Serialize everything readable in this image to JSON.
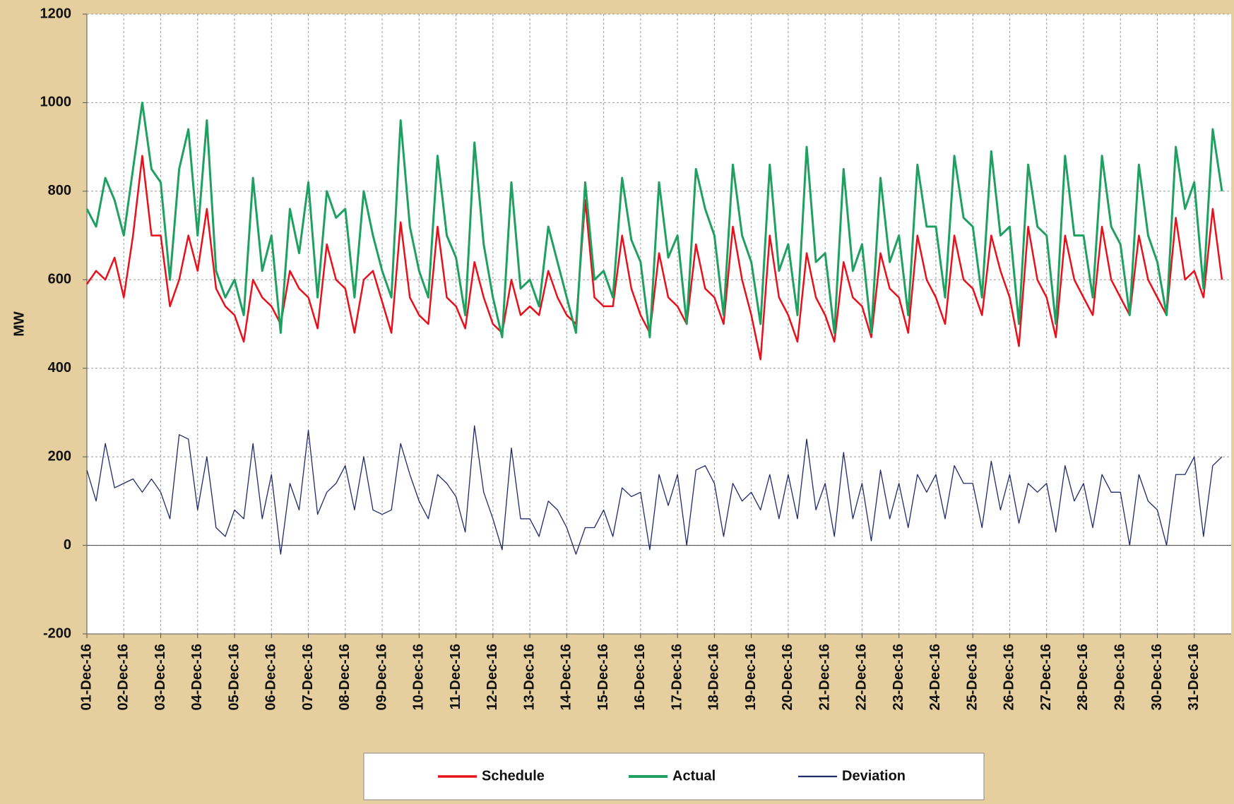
{
  "chart_data": {
    "type": "line",
    "y_label": "MW",
    "x": [
      0,
      0.25,
      0.5,
      0.75,
      1,
      1.25,
      1.5,
      1.75,
      2,
      2.25,
      2.5,
      2.75,
      3,
      3.25,
      3.5,
      3.75,
      4,
      4.25,
      4.5,
      4.75,
      5,
      5.25,
      5.5,
      5.75,
      6,
      6.25,
      6.5,
      6.75,
      7,
      7.25,
      7.5,
      7.75,
      8,
      8.25,
      8.5,
      8.75,
      9,
      9.25,
      9.5,
      9.75,
      10,
      10.25,
      10.5,
      10.75,
      11,
      11.25,
      11.5,
      11.75,
      12,
      12.25,
      12.5,
      12.75,
      13,
      13.25,
      13.5,
      13.75,
      14,
      14.25,
      14.5,
      14.75,
      15,
      15.25,
      15.5,
      15.75,
      16,
      16.25,
      16.5,
      16.75,
      17,
      17.25,
      17.5,
      17.75,
      18,
      18.25,
      18.5,
      18.75,
      19,
      19.25,
      19.5,
      19.75,
      20,
      20.25,
      20.5,
      20.75,
      21,
      21.25,
      21.5,
      21.75,
      22,
      22.25,
      22.5,
      22.75,
      23,
      23.25,
      23.5,
      23.75,
      24,
      24.25,
      24.5,
      24.75,
      25,
      25.25,
      25.5,
      25.75,
      26,
      26.25,
      26.5,
      26.75,
      27,
      27.25,
      27.5,
      27.75,
      28,
      28.25,
      28.5,
      28.75,
      29,
      29.25,
      29.5,
      29.75,
      30,
      30.25,
      30.5,
      30.75
    ],
    "series": [
      {
        "name": "Schedule",
        "color": "#e8101a",
        "values": [
          590,
          620,
          600,
          650,
          560,
          700,
          880,
          700,
          700,
          540,
          600,
          700,
          620,
          760,
          580,
          540,
          520,
          460,
          600,
          560,
          540,
          500,
          620,
          580,
          560,
          490,
          680,
          600,
          580,
          480,
          600,
          620,
          550,
          480,
          730,
          560,
          520,
          500,
          720,
          560,
          540,
          490,
          640,
          560,
          500,
          480,
          600,
          520,
          540,
          520,
          620,
          560,
          520,
          500,
          780,
          560,
          540,
          540,
          700,
          580,
          520,
          480,
          660,
          560,
          540,
          500,
          680,
          580,
          560,
          500,
          720,
          600,
          520,
          420,
          700,
          560,
          520,
          460,
          660,
          560,
          520,
          460,
          640,
          560,
          540,
          470,
          660,
          580,
          560,
          480,
          700,
          600,
          560,
          500,
          700,
          600,
          580,
          520,
          700,
          620,
          560,
          450,
          720,
          600,
          560,
          470,
          700,
          600,
          560,
          520,
          720,
          600,
          560,
          520,
          700,
          600,
          560,
          520,
          740,
          600,
          620,
          560,
          760,
          600
        ]
      },
      {
        "name": "Actual",
        "color": "#1ea060",
        "values": [
          760,
          720,
          830,
          780,
          700,
          850,
          1000,
          850,
          820,
          600,
          850,
          940,
          700,
          960,
          620,
          560,
          600,
          520,
          830,
          620,
          700,
          480,
          760,
          660,
          820,
          560,
          800,
          740,
          760,
          560,
          800,
          700,
          620,
          560,
          960,
          720,
          620,
          560,
          880,
          700,
          650,
          520,
          910,
          680,
          560,
          470,
          820,
          580,
          600,
          540,
          720,
          640,
          560,
          480,
          820,
          600,
          620,
          560,
          830,
          690,
          640,
          470,
          820,
          650,
          700,
          500,
          850,
          760,
          700,
          520,
          860,
          700,
          640,
          500,
          860,
          620,
          680,
          520,
          900,
          640,
          660,
          480,
          850,
          620,
          680,
          480,
          830,
          640,
          700,
          520,
          860,
          720,
          720,
          560,
          880,
          740,
          720,
          560,
          890,
          700,
          720,
          500,
          860,
          720,
          700,
          500,
          880,
          700,
          700,
          560,
          880,
          720,
          680,
          520,
          860,
          700,
          640,
          520,
          900,
          760,
          820,
          580,
          940,
          800
        ]
      },
      {
        "name": "Deviation",
        "color": "#1f2a6b",
        "values": [
          170,
          100,
          230,
          130,
          140,
          150,
          120,
          150,
          120,
          60,
          250,
          240,
          80,
          200,
          40,
          20,
          80,
          60,
          230,
          60,
          160,
          -20,
          140,
          80,
          260,
          70,
          120,
          140,
          180,
          80,
          200,
          80,
          70,
          80,
          230,
          160,
          100,
          60,
          160,
          140,
          110,
          30,
          270,
          120,
          60,
          -10,
          220,
          60,
          60,
          20,
          100,
          80,
          40,
          -20,
          40,
          40,
          80,
          20,
          130,
          110,
          120,
          -10,
          160,
          90,
          160,
          0,
          170,
          180,
          140,
          20,
          140,
          100,
          120,
          80,
          160,
          60,
          160,
          60,
          240,
          80,
          140,
          20,
          210,
          60,
          140,
          10,
          170,
          60,
          140,
          40,
          160,
          120,
          160,
          60,
          180,
          140,
          140,
          40,
          190,
          80,
          160,
          50,
          140,
          120,
          140,
          30,
          180,
          100,
          140,
          40,
          160,
          120,
          120,
          0,
          160,
          100,
          80,
          0,
          160,
          160,
          200,
          20,
          180,
          200
        ]
      }
    ],
    "xlim": [
      0,
      31
    ],
    "xticks": [
      {
        "value": 0,
        "label": "01-Dec-16"
      },
      {
        "value": 1,
        "label": "02-Dec-16"
      },
      {
        "value": 2,
        "label": "03-Dec-16"
      },
      {
        "value": 3,
        "label": "04-Dec-16"
      },
      {
        "value": 4,
        "label": "05-Dec-16"
      },
      {
        "value": 5,
        "label": "06-Dec-16"
      },
      {
        "value": 6,
        "label": "07-Dec-16"
      },
      {
        "value": 7,
        "label": "08-Dec-16"
      },
      {
        "value": 8,
        "label": "09-Dec-16"
      },
      {
        "value": 9,
        "label": "10-Dec-16"
      },
      {
        "value": 10,
        "label": "11-Dec-16"
      },
      {
        "value": 11,
        "label": "12-Dec-16"
      },
      {
        "value": 12,
        "label": "13-Dec-16"
      },
      {
        "value": 13,
        "label": "14-Dec-16"
      },
      {
        "value": 14,
        "label": "15-Dec-16"
      },
      {
        "value": 15,
        "label": "16-Dec-16"
      },
      {
        "value": 16,
        "label": "17-Dec-16"
      },
      {
        "value": 17,
        "label": "18-Dec-16"
      },
      {
        "value": 18,
        "label": "19-Dec-16"
      },
      {
        "value": 19,
        "label": "20-Dec-16"
      },
      {
        "value": 20,
        "label": "21-Dec-16"
      },
      {
        "value": 21,
        "label": "22-Dec-16"
      },
      {
        "value": 22,
        "label": "23-Dec-16"
      },
      {
        "value": 23,
        "label": "24-Dec-16"
      },
      {
        "value": 24,
        "label": "25-Dec-16"
      },
      {
        "value": 25,
        "label": "26-Dec-16"
      },
      {
        "value": 26,
        "label": "27-Dec-16"
      },
      {
        "value": 27,
        "label": "28-Dec-16"
      },
      {
        "value": 28,
        "label": "29-Dec-16"
      },
      {
        "value": 29,
        "label": "30-Dec-16"
      },
      {
        "value": 30,
        "label": "31-Dec-16"
      }
    ],
    "ylim": [
      -200,
      1200
    ],
    "yticks": [
      -200,
      0,
      200,
      400,
      600,
      800,
      1000,
      1200
    ],
    "grid": true
  }
}
